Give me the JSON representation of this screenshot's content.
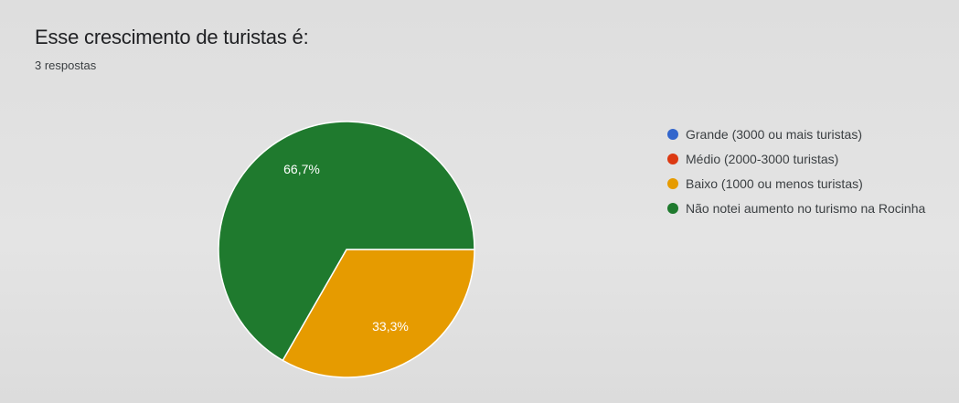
{
  "header": {
    "title": "Esse crescimento de turistas é:",
    "responses": "3 respostas"
  },
  "chart_data": {
    "type": "pie",
    "title": "Esse crescimento de turistas é:",
    "slices": [
      {
        "label": "Grande (3000 ou mais turistas)",
        "value": 0,
        "color": "#3366cc"
      },
      {
        "label": "Médio (2000-3000 turistas)",
        "value": 0,
        "color": "#dc3912"
      },
      {
        "label": "Baixo (1000 ou menos turistas)",
        "value": 33.3,
        "value_label": "33,3%",
        "color": "#e69b00"
      },
      {
        "label": "Não notei aumento no turismo na Rocinha",
        "value": 66.7,
        "value_label": "66,7%",
        "color": "#1f7a2e"
      }
    ],
    "legend_position": "right"
  }
}
